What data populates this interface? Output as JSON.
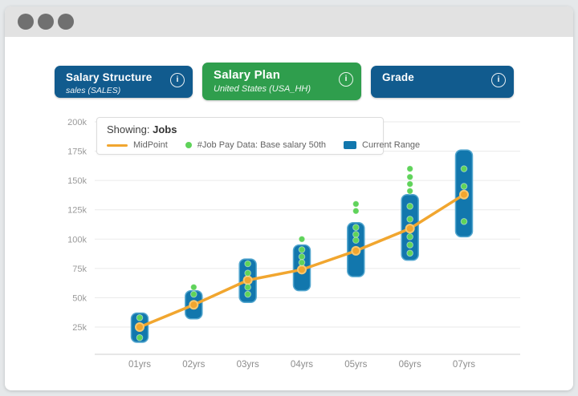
{
  "window": {
    "control_dots": 3
  },
  "colors": {
    "tab_blue": "#115b8e",
    "tab_green": "#2f9e4d",
    "bar_blue": "#1277ad",
    "bar_edge": "#54a7cf",
    "midpoint_orange": "#f1a62f",
    "pay_dot_green": "#5fd35a",
    "grid_gray": "#eaeaea",
    "axis_gray": "#cfcfcf"
  },
  "tabs": [
    {
      "title": "Salary Structure",
      "subtitle": "sales (SALES)",
      "info_glyph": "i",
      "color": "#115b8e",
      "active": false
    },
    {
      "title": "Salary Plan",
      "subtitle": "United States (USA_HH)",
      "info_glyph": "i",
      "color": "#2f9e4d",
      "active": true
    },
    {
      "title": "Grade",
      "subtitle": "",
      "info_glyph": "i",
      "color": "#115b8e",
      "active": false
    }
  ],
  "legend": {
    "showing_label": "Showing:",
    "showing_value": "Jobs",
    "items": [
      {
        "label": "MidPoint",
        "swatch": "line",
        "color": "#f1a62f"
      },
      {
        "label": "#Job Pay Data: Base salary 50th",
        "swatch": "dot",
        "color": "#5fd35a"
      },
      {
        "label": "Current Range",
        "swatch": "rect",
        "color": "#1277ad"
      }
    ]
  },
  "chart_data": {
    "type": "combo",
    "title": "Showing: Jobs",
    "unit": "thousands (k)",
    "categories": [
      "01yrs",
      "02yrs",
      "03yrs",
      "04yrs",
      "05yrs",
      "06yrs",
      "07yrs"
    ],
    "x_axis": {
      "labels": [
        "01yrs",
        "02yrs",
        "03yrs",
        "04yrs",
        "05yrs",
        "06yrs",
        "07yrs"
      ]
    },
    "y_axis": {
      "ticks": [
        "200k",
        "175k",
        "150k",
        "125k",
        "100k",
        "75k",
        "50k",
        "25k"
      ],
      "values": [
        200,
        175,
        150,
        125,
        100,
        75,
        50,
        25
      ],
      "range": [
        0,
        200
      ],
      "grid": true
    },
    "series": [
      {
        "name": "MidPoint",
        "type": "line",
        "color": "#f1a62f",
        "values": [
          25,
          44,
          65,
          74,
          90,
          109,
          138
        ]
      },
      {
        "name": "Current Range",
        "type": "range-bar",
        "color": "#1277ad",
        "ranges": [
          [
            12,
            37
          ],
          [
            32,
            56
          ],
          [
            46,
            83
          ],
          [
            56,
            95
          ],
          [
            68,
            114
          ],
          [
            82,
            138
          ],
          [
            102,
            176
          ]
        ]
      },
      {
        "name": "#Job Pay Data: Base salary 50th",
        "type": "scatter",
        "color": "#5fd35a",
        "points": [
          [
            33,
            16
          ],
          [
            59,
            53
          ],
          [
            79,
            71,
            59,
            53
          ],
          [
            100,
            91,
            85,
            80
          ],
          [
            130,
            124,
            110,
            104,
            99
          ],
          [
            160,
            153,
            147,
            141,
            128,
            117,
            102,
            95,
            88
          ],
          [
            160,
            145,
            115
          ]
        ]
      }
    ],
    "legend_position": "top-left"
  }
}
